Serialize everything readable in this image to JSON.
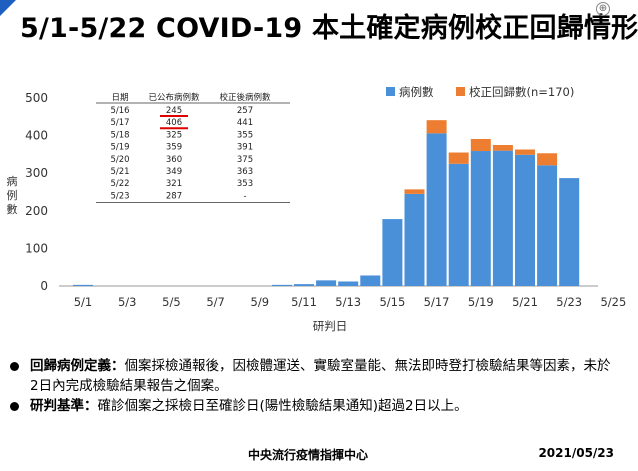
{
  "title": "5/1-5/22 COVID-19 本土確定病例校正回歸情形",
  "chart_data": {
    "type": "bar",
    "stacked": true,
    "xlabel": "研判日",
    "ylabel": "病例數",
    "ylim": [
      0,
      500
    ],
    "yticks": [
      0,
      100,
      200,
      300,
      400,
      500
    ],
    "x_tick_labels": [
      "5/1",
      "5/3",
      "5/5",
      "5/7",
      "5/9",
      "5/11",
      "5/13",
      "5/15",
      "5/17",
      "5/19",
      "5/21",
      "5/23",
      "5/25"
    ],
    "dates": [
      "5/1",
      "5/2",
      "5/3",
      "5/4",
      "5/5",
      "5/6",
      "5/7",
      "5/8",
      "5/9",
      "5/10",
      "5/11",
      "5/12",
      "5/13",
      "5/14",
      "5/15",
      "5/16",
      "5/17",
      "5/18",
      "5/19",
      "5/20",
      "5/21",
      "5/22",
      "5/23",
      "5/24",
      "5/25"
    ],
    "series": [
      {
        "name": "病例數",
        "color": "#4a90d9",
        "values": [
          3,
          0,
          0,
          0,
          0,
          0,
          0,
          0,
          0,
          3,
          5,
          15,
          12,
          28,
          178,
          245,
          406,
          325,
          359,
          360,
          349,
          321,
          287,
          null,
          null
        ]
      },
      {
        "name": "校正回歸數(n=170)",
        "color": "#ed7d31",
        "values": [
          0,
          0,
          0,
          0,
          0,
          0,
          0,
          0,
          0,
          0,
          0,
          0,
          0,
          0,
          0,
          12,
          35,
          30,
          32,
          15,
          14,
          32,
          0,
          null,
          null
        ]
      }
    ],
    "legend_position": "top-right",
    "grid": false,
    "inset_table": {
      "headers": [
        "日期",
        "已公布病例數",
        "校正後病例數"
      ],
      "rows": [
        [
          "5/16",
          "245",
          "257"
        ],
        [
          "5/17",
          "406",
          "441"
        ],
        [
          "5/18",
          "325",
          "355"
        ],
        [
          "5/19",
          "359",
          "391"
        ],
        [
          "5/20",
          "360",
          "375"
        ],
        [
          "5/21",
          "349",
          "363"
        ],
        [
          "5/22",
          "321",
          "353"
        ],
        [
          "5/23",
          "287",
          "-"
        ]
      ],
      "underlined_rows": [
        "5/16",
        "5/17"
      ]
    }
  },
  "bullets": [
    {
      "term": "回歸病例定義：",
      "text": "個案採檢通報後，因檢體運送、實驗室量能、無法即時登打檢驗結果等因素，未於2日內完成檢驗結果報告之個案。"
    },
    {
      "term": "研判基準：",
      "text": "確診個案之採檢日至確診日(陽性檢驗結果通知)超過2日以上。"
    }
  ],
  "footer": {
    "org": "中央流行疫情指揮中心",
    "date": "2021/05/23"
  }
}
